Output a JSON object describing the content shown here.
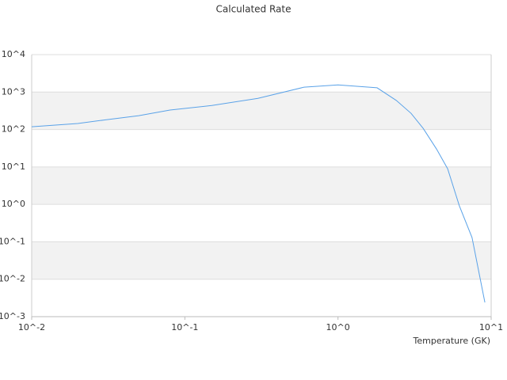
{
  "chart_data": {
    "type": "line",
    "title": "Calculated Rate",
    "x_label": "Temperature (GK)",
    "x": [
      0.01,
      0.02,
      0.03,
      0.05,
      0.08,
      0.15,
      0.3,
      0.6,
      1.0,
      1.8,
      2.4,
      3.0,
      3.6,
      4.4,
      5.2,
      6.2,
      7.5,
      9.1
    ],
    "series": [
      {
        "name": "Calculated Rate",
        "color": "#5aa2e8",
        "values": [
          118,
          145,
          180,
          234,
          330,
          437,
          680,
          1350,
          1550,
          1300,
          600,
          270,
          107,
          30,
          8.9,
          0.91,
          0.13,
          0.0024
        ]
      }
    ],
    "xlog": true,
    "ylog": true,
    "xlim": [
      0.01,
      10
    ],
    "ylim": [
      0.001,
      10000
    ],
    "xticks": [
      {
        "value": 0.01,
        "label": "10^-2"
      },
      {
        "value": 0.1,
        "label": "10^-1"
      },
      {
        "value": 1,
        "label": "10^0"
      },
      {
        "value": 10,
        "label": "10^1"
      }
    ],
    "yticks": [
      {
        "value": 0.001,
        "label": "10^-3"
      },
      {
        "value": 0.01,
        "label": "10^-2"
      },
      {
        "value": 0.1,
        "label": "10^-1"
      },
      {
        "value": 1,
        "label": "10^0"
      },
      {
        "value": 10,
        "label": "10^1"
      },
      {
        "value": 100,
        "label": "10^2"
      },
      {
        "value": 1000,
        "label": "10^3"
      },
      {
        "value": 10000,
        "label": "10^4"
      }
    ],
    "grid": true,
    "band_color": "#f2f2f2"
  }
}
